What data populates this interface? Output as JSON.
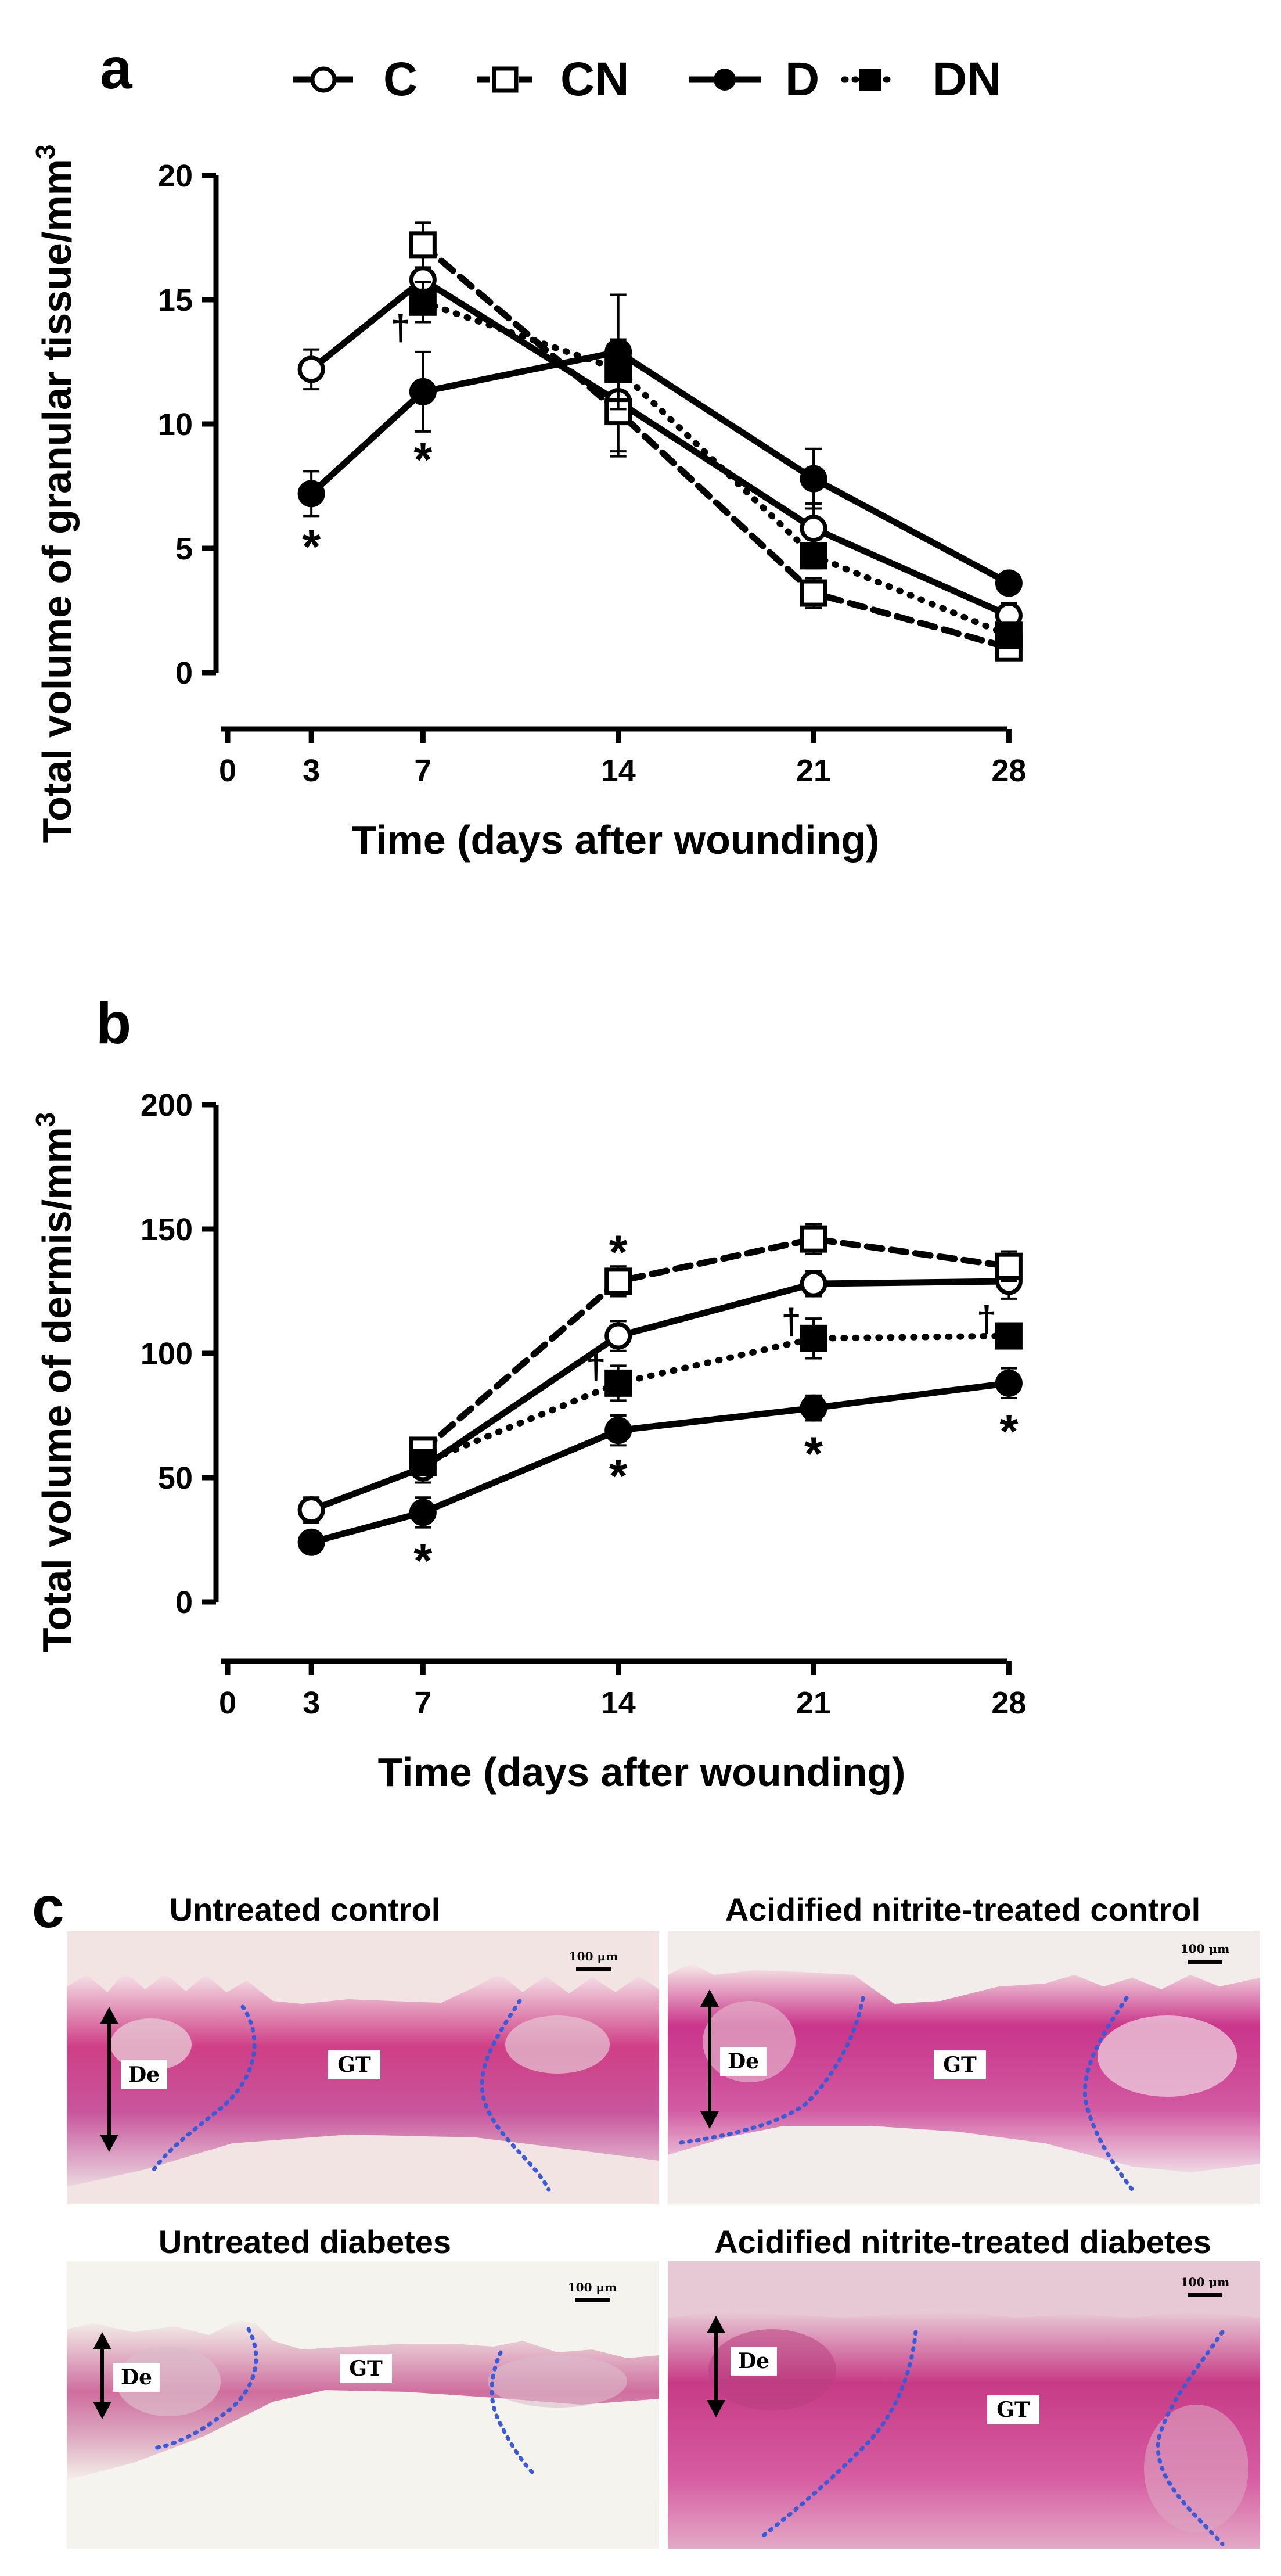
{
  "legend": [
    {
      "label": "C",
      "marker": "open-circle",
      "line": "solid"
    },
    {
      "label": "CN",
      "marker": "open-square",
      "line": "dashed"
    },
    {
      "label": "D",
      "marker": "filled-circle",
      "line": "solid"
    },
    {
      "label": "DN",
      "marker": "filled-square",
      "line": "dotted"
    }
  ],
  "chart_data": [
    {
      "panel": "a",
      "type": "line",
      "xlabel": "Time (days after wounding)",
      "ylabel": "Total volume of granular tissue/mm3",
      "ylabel_main": "Total volume of granular tissue/mm",
      "ylabel_sup": "3",
      "x_ticks": [
        0,
        3,
        7,
        14,
        21,
        28
      ],
      "y_ticks": [
        0,
        5,
        10,
        15,
        20
      ],
      "ylim": [
        0,
        20
      ],
      "x": [
        3,
        7,
        14,
        21,
        28
      ],
      "series": [
        {
          "name": "C",
          "values": [
            12.2,
            15.8,
            10.9,
            5.8,
            2.3
          ],
          "errors": [
            0.8,
            1.0,
            2.0,
            1.0,
            0.5
          ]
        },
        {
          "name": "CN",
          "values": [
            null,
            17.2,
            10.5,
            3.2,
            1.0
          ],
          "errors": [
            null,
            0.9,
            1.8,
            0.6,
            0.3
          ]
        },
        {
          "name": "D",
          "values": [
            7.2,
            11.3,
            12.9,
            7.8,
            3.6
          ],
          "errors": [
            0.9,
            1.6,
            2.3,
            1.2,
            0.4
          ]
        },
        {
          "name": "DN",
          "values": [
            null,
            14.9,
            12.2,
            4.7,
            1.5
          ],
          "errors": [
            null,
            0.8,
            1.2,
            0.5,
            0.3
          ]
        }
      ],
      "annotations": [
        {
          "text": "*",
          "x": 3,
          "y": 5.2
        },
        {
          "text": "*",
          "x": 7,
          "y": 8.7
        },
        {
          "text": "†",
          "x": 6.2,
          "y": 13.9
        }
      ]
    },
    {
      "panel": "b",
      "type": "line",
      "xlabel": "Time (days after wounding)",
      "ylabel": "Total volume of dermis/mm3",
      "ylabel_main": "Total volume of dermis/mm",
      "ylabel_sup": "3",
      "x_ticks": [
        0,
        3,
        7,
        14,
        21,
        28
      ],
      "y_ticks": [
        0,
        50,
        100,
        150,
        200
      ],
      "ylim": [
        0,
        200
      ],
      "x": [
        3,
        7,
        14,
        21,
        28
      ],
      "series": [
        {
          "name": "C",
          "values": [
            37,
            54,
            107,
            128,
            129
          ],
          "errors": [
            5,
            6,
            6,
            5,
            7
          ]
        },
        {
          "name": "CN",
          "values": [
            null,
            61,
            129,
            146,
            135
          ],
          "errors": [
            null,
            5,
            6,
            6,
            6
          ]
        },
        {
          "name": "D",
          "values": [
            24,
            36,
            69,
            78,
            88
          ],
          "errors": [
            4,
            6,
            6,
            5,
            6
          ]
        },
        {
          "name": "DN",
          "values": [
            null,
            56,
            88,
            106,
            107
          ],
          "errors": [
            null,
            4,
            7,
            8,
            5
          ]
        }
      ],
      "annotations": [
        {
          "text": "*",
          "x": 14,
          "y": 142
        },
        {
          "text": "*",
          "x": 7,
          "y": 18
        },
        {
          "text": "*",
          "x": 14,
          "y": 52
        },
        {
          "text": "*",
          "x": 21,
          "y": 61
        },
        {
          "text": "*",
          "x": 28,
          "y": 70
        },
        {
          "text": "†",
          "x": 13.2,
          "y": 95
        },
        {
          "text": "†",
          "x": 20.2,
          "y": 113
        },
        {
          "text": "†",
          "x": 27.2,
          "y": 114
        }
      ]
    }
  ],
  "panel_letters": {
    "a": "a",
    "b": "b",
    "c": "c"
  },
  "histology": [
    {
      "title": "Untreated control",
      "region_de": "De",
      "region_gt": "GT",
      "scale_label": "100 μm"
    },
    {
      "title": "Acidified nitrite-treated control",
      "region_de": "De",
      "region_gt": "GT",
      "scale_label": "100 μm"
    },
    {
      "title": "Untreated diabetes",
      "region_de": "De",
      "region_gt": "GT",
      "scale_label": "100 μm"
    },
    {
      "title": "Acidified nitrite-treated diabetes",
      "region_de": "De",
      "region_gt": "GT",
      "scale_label": "100 μm"
    }
  ],
  "colors": {
    "ink": "#000000",
    "boundary": "#3b5bd6"
  }
}
